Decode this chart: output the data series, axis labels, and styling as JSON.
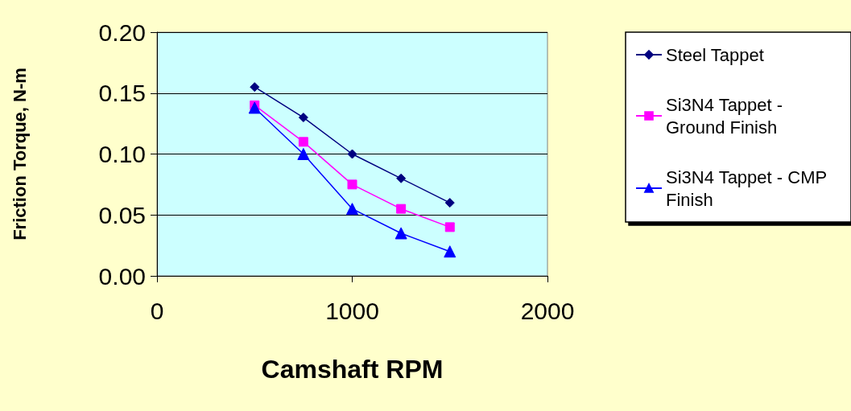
{
  "chart_data": {
    "type": "line",
    "xlabel": "Camshaft RPM",
    "ylabel": "Friction Torque, N-m",
    "x": [
      500,
      750,
      1000,
      1250,
      1500
    ],
    "series": [
      {
        "name": "Steel Tappet",
        "color": "#000080",
        "marker": "diamond",
        "values": [
          0.155,
          0.13,
          0.1,
          0.08,
          0.06
        ]
      },
      {
        "name": "Si3N4 Tappet - Ground Finish",
        "color": "#ff00ff",
        "marker": "square",
        "values": [
          0.14,
          0.11,
          0.075,
          0.055,
          0.04
        ]
      },
      {
        "name": "Si3N4 Tappet - CMP Finish",
        "color": "#0000ff",
        "marker": "triangle",
        "values": [
          0.138,
          0.1,
          0.055,
          0.035,
          0.02
        ]
      }
    ],
    "xlim": [
      0,
      2000
    ],
    "xticks": [
      0,
      1000,
      2000
    ],
    "ylim": [
      0,
      0.2
    ],
    "yticks": [
      {
        "value": 0,
        "label": "0.00"
      },
      {
        "value": 0.05,
        "label": "0.05"
      },
      {
        "value": 0.1,
        "label": "0.10"
      },
      {
        "value": 0.15,
        "label": "0.15"
      },
      {
        "value": 0.2,
        "label": "0.20"
      }
    ],
    "grid": "y",
    "legend": "right"
  }
}
